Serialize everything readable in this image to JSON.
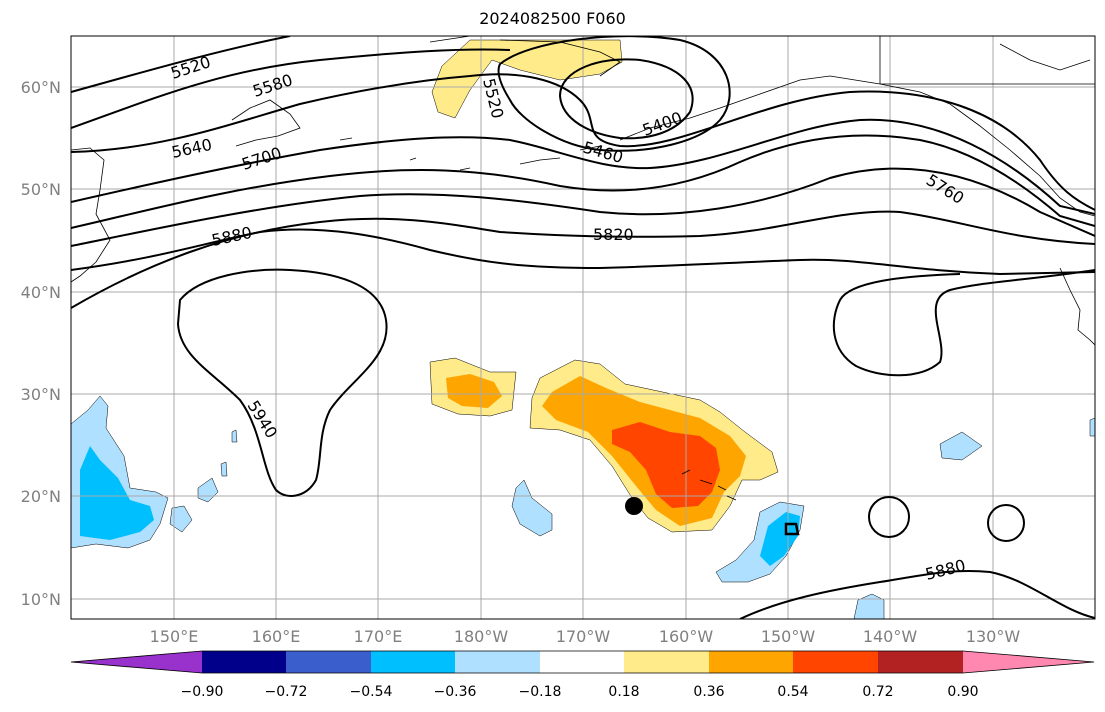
{
  "title": "2024082500 F060",
  "lat_labels": [
    "60°N",
    "50°N",
    "40°N",
    "30°N",
    "20°N",
    "10°N"
  ],
  "lon_labels": [
    "150°E",
    "160°E",
    "170°E",
    "180°W",
    "170°W",
    "160°W",
    "150°W",
    "140°W",
    "130°W"
  ],
  "colorbar": {
    "tick_labels": [
      "−0.90",
      "−0.72",
      "−0.54",
      "−0.36",
      "−0.18",
      "0.18",
      "0.36",
      "0.54",
      "0.72",
      "0.90"
    ],
    "colors": [
      "#9932cc",
      "#00008b",
      "#3a5fcd",
      "#00bfff",
      "#b0e0ff",
      "#ffffff",
      "#ffeb8a",
      "#ffa500",
      "#ff4500",
      "#b22222",
      "#ff88b0"
    ]
  },
  "contour_labels": [
    "5520",
    "5580",
    "5640",
    "5700",
    "5880",
    "5820",
    "5520",
    "5460",
    "5400",
    "5760",
    "5940",
    "5880"
  ],
  "colors": {
    "grid": "#a9a9a9",
    "contour": "#000000",
    "marker": "#000000"
  }
}
